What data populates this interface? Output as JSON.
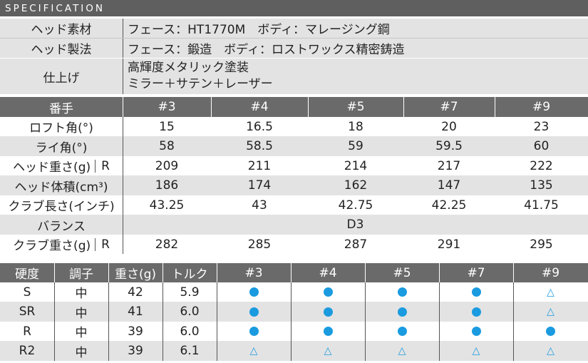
{
  "title": "SPECIFICATION",
  "head_rows": [
    {
      "label": "ヘッド素材",
      "value": "フェース：HT1770M　ボディ：マレージング鋼"
    },
    {
      "label": "ヘッド製法",
      "value": "フェース：鍛造　ボディ：ロストワックス精密鋳造"
    },
    {
      "label": "仕上げ",
      "value_lines": [
        "高輝度メタリック塗装",
        "ミラー＋サテン＋レーザー"
      ]
    }
  ],
  "spec_table": {
    "header": {
      "label": "番手",
      "columns": [
        "#3",
        "#4",
        "#5",
        "#7",
        "#9"
      ]
    },
    "rows": [
      {
        "label": "ロフト角(°)",
        "values": [
          "15",
          "16.5",
          "18",
          "20",
          "23"
        ]
      },
      {
        "label": "ライ角(°)",
        "values": [
          "58",
          "58.5",
          "59",
          "59.5",
          "60"
        ]
      },
      {
        "label": "ヘッド重さ(g)",
        "suffix": "R",
        "values": [
          "209",
          "211",
          "214",
          "217",
          "222"
        ]
      },
      {
        "label": "ヘッド体積(cm³)",
        "values": [
          "186",
          "174",
          "162",
          "147",
          "135"
        ]
      },
      {
        "label": "クラブ長さ(インチ)",
        "values": [
          "43.25",
          "43",
          "42.75",
          "42.25",
          "41.75"
        ]
      },
      {
        "label": "バランス",
        "merged_value": "D3"
      },
      {
        "label": "クラブ重さ(g)",
        "suffix": "R",
        "values": [
          "282",
          "285",
          "287",
          "291",
          "295"
        ]
      }
    ]
  },
  "shaft_table": {
    "headers": [
      "硬度",
      "調子",
      "重さ(g)",
      "トルク",
      "#3",
      "#4",
      "#5",
      "#7",
      "#9"
    ],
    "rows": [
      {
        "flex": "S",
        "kick": "中",
        "weight": "42",
        "torque": "5.9",
        "marks": [
          "dot",
          "dot",
          "dot",
          "dot",
          "triangle"
        ]
      },
      {
        "flex": "SR",
        "kick": "中",
        "weight": "41",
        "torque": "6.0",
        "marks": [
          "dot",
          "dot",
          "dot",
          "dot",
          "triangle"
        ]
      },
      {
        "flex": "R",
        "kick": "中",
        "weight": "39",
        "torque": "6.0",
        "marks": [
          "dot",
          "dot",
          "dot",
          "dot",
          "dot"
        ]
      },
      {
        "flex": "R2",
        "kick": "中",
        "weight": "39",
        "torque": "6.1",
        "marks": [
          "triangle",
          "triangle",
          "triangle",
          "triangle",
          "triangle"
        ]
      }
    ],
    "mark_glyphs": {
      "dot": "●",
      "triangle": "△"
    },
    "mark_color": "#1a9be0"
  }
}
